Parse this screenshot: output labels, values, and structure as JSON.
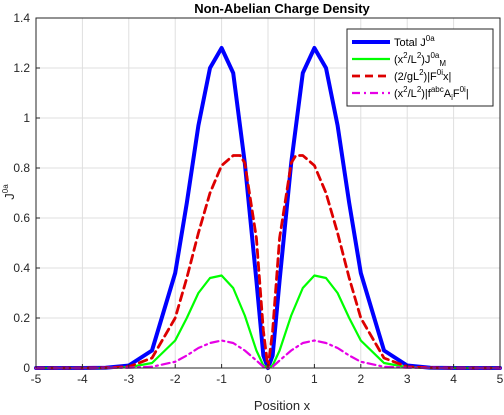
{
  "chart_data": {
    "type": "line",
    "title": "Non-Abelian Charge Density",
    "xlabel": "Position x",
    "ylabel": {
      "base": "J",
      "sup": "0a"
    },
    "xlim": [
      -5,
      5
    ],
    "ylim": [
      0,
      1.4
    ],
    "xticks": [
      -5,
      -4,
      -3,
      -2,
      -1,
      0,
      1,
      2,
      3,
      4,
      5
    ],
    "yticks": [
      0,
      0.2,
      0.4,
      0.6,
      0.8,
      1,
      1.2,
      1.4
    ],
    "xtick_labels": [
      "-5",
      "-4",
      "-3",
      "-2",
      "-1",
      "0",
      "1",
      "2",
      "3",
      "4",
      "5"
    ],
    "ytick_labels": [
      "0",
      "0.2",
      "0.4",
      "0.6",
      "0.8",
      "1",
      "1.2",
      "1.4"
    ],
    "grid": true,
    "legend_position": "top-right",
    "series": [
      {
        "legend": [
          {
            "t": "Total J"
          },
          {
            "t": "0a",
            "sup": true
          }
        ],
        "color": "#0000ff",
        "style": "solid",
        "x": [
          -5,
          -4,
          -3.5,
          -3,
          -2.5,
          -2,
          -1.75,
          -1.5,
          -1.25,
          -1,
          -0.75,
          -0.5,
          -0.25,
          -0.1,
          0,
          0.1,
          0.25,
          0.5,
          0.75,
          1,
          1.25,
          1.5,
          1.75,
          2,
          2.5,
          3,
          3.5,
          4,
          5
        ],
        "y": [
          0,
          0,
          0.001,
          0.01,
          0.07,
          0.38,
          0.66,
          0.97,
          1.2,
          1.28,
          1.18,
          0.82,
          0.35,
          0.05,
          0,
          0.05,
          0.35,
          0.82,
          1.18,
          1.28,
          1.2,
          0.97,
          0.66,
          0.38,
          0.07,
          0.01,
          0.001,
          0,
          0
        ]
      },
      {
        "legend": [
          {
            "t": "(x"
          },
          {
            "t": "2",
            "sup": true
          },
          {
            "t": "/L"
          },
          {
            "t": "2",
            "sup": true
          },
          {
            "t": ")J"
          },
          {
            "t": "0a",
            "sup": true
          },
          {
            "t": "M",
            "sub": true
          }
        ],
        "color": "#00ff00",
        "style": "solid",
        "x": [
          -5,
          -4,
          -3.5,
          -3,
          -2.5,
          -2,
          -1.75,
          -1.5,
          -1.25,
          -1,
          -0.75,
          -0.5,
          -0.25,
          -0.1,
          0,
          0.1,
          0.25,
          0.5,
          0.75,
          1,
          1.25,
          1.5,
          1.75,
          2,
          2.5,
          3,
          3.5,
          4,
          5
        ],
        "y": [
          0,
          0,
          0,
          0.003,
          0.02,
          0.11,
          0.2,
          0.3,
          0.36,
          0.37,
          0.32,
          0.21,
          0.07,
          0.01,
          0,
          0.01,
          0.07,
          0.21,
          0.32,
          0.37,
          0.36,
          0.3,
          0.2,
          0.11,
          0.02,
          0.003,
          0,
          0,
          0
        ]
      },
      {
        "legend": [
          {
            "t": "(2/gL"
          },
          {
            "t": "2",
            "sup": true
          },
          {
            "t": ")|F"
          },
          {
            "t": "0i",
            "sup": true
          },
          {
            "t": "x|"
          }
        ],
        "color": "#dd0000",
        "style": "dashed",
        "x": [
          -5,
          -4,
          -3.5,
          -3,
          -2.5,
          -2,
          -1.75,
          -1.5,
          -1.25,
          -1,
          -0.75,
          -0.6,
          -0.5,
          -0.25,
          -0.1,
          0,
          0.1,
          0.25,
          0.5,
          0.6,
          0.75,
          1,
          1.25,
          1.5,
          1.75,
          2,
          2.5,
          3,
          3.5,
          4,
          5
        ],
        "y": [
          0,
          0,
          0.001,
          0.005,
          0.04,
          0.2,
          0.36,
          0.54,
          0.7,
          0.81,
          0.85,
          0.85,
          0.82,
          0.52,
          0.15,
          0,
          0.15,
          0.52,
          0.82,
          0.85,
          0.85,
          0.81,
          0.7,
          0.54,
          0.36,
          0.2,
          0.04,
          0.005,
          0.001,
          0,
          0
        ]
      },
      {
        "legend": [
          {
            "t": "(x"
          },
          {
            "t": "2",
            "sup": true
          },
          {
            "t": "/L"
          },
          {
            "t": "2",
            "sup": true
          },
          {
            "t": ")|f"
          },
          {
            "t": "abc",
            "sup": true
          },
          {
            "t": "A"
          },
          {
            "t": "i",
            "sub": true
          },
          {
            "t": "F"
          },
          {
            "t": "0i",
            "sup": true
          },
          {
            "t": "|"
          }
        ],
        "color": "#e600e6",
        "style": "dashdot",
        "x": [
          -5,
          -4,
          -3,
          -2.5,
          -2,
          -1.75,
          -1.5,
          -1.25,
          -1,
          -0.75,
          -0.5,
          -0.25,
          -0.1,
          0,
          0.1,
          0.25,
          0.5,
          0.75,
          1,
          1.25,
          1.5,
          1.75,
          2,
          2.5,
          3,
          4,
          5
        ],
        "y": [
          0,
          0,
          0.001,
          0.005,
          0.025,
          0.05,
          0.08,
          0.1,
          0.11,
          0.1,
          0.07,
          0.03,
          0.005,
          0,
          0.005,
          0.03,
          0.07,
          0.1,
          0.11,
          0.1,
          0.08,
          0.05,
          0.025,
          0.005,
          0.001,
          0,
          0
        ]
      }
    ]
  }
}
